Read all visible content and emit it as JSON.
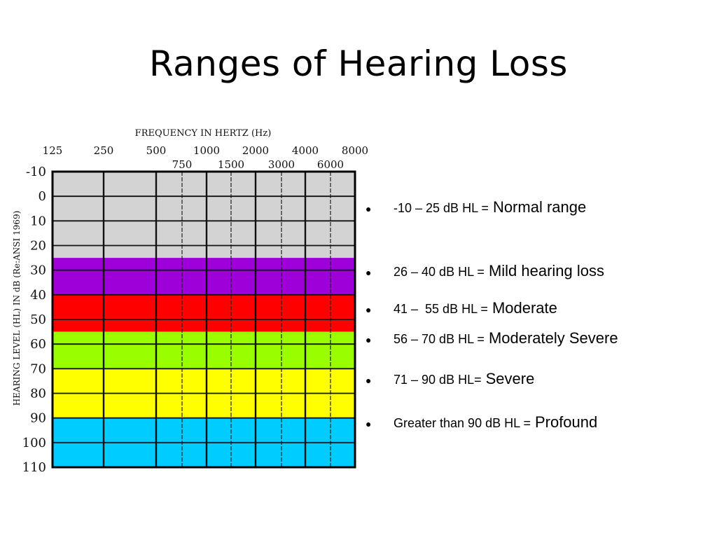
{
  "slide": {
    "title": "Ranges of Hearing Loss"
  },
  "audiogram": {
    "frequency_axis_title": "FREQUENCY IN HERTZ (Hz)",
    "level_axis_title": "HEARING LEVEL (HL) IN dB (Re:ANSI 1969)",
    "top_frequencies": [
      "125",
      "250",
      "500",
      "1000",
      "2000",
      "4000",
      "8000"
    ],
    "mid_frequencies": [
      "750",
      "1500",
      "3000",
      "6000"
    ],
    "levels": [
      "-10",
      "0",
      "10",
      "20",
      "30",
      "40",
      "50",
      "60",
      "70",
      "80",
      "90",
      "100",
      "110"
    ],
    "bands": [
      {
        "from": -10,
        "to": 25,
        "color": "#d3d3d3"
      },
      {
        "from": 25,
        "to": 40,
        "color": "#9d00d9"
      },
      {
        "from": 40,
        "to": 55,
        "color": "#ff0000"
      },
      {
        "from": 55,
        "to": 70,
        "color": "#99ff00"
      },
      {
        "from": 70,
        "to": 90,
        "color": "#ffff00"
      },
      {
        "from": 90,
        "to": 110,
        "color": "#00ccff"
      }
    ]
  },
  "legend": [
    {
      "bullet": "●",
      "range": "-10 – 25 dB HL =",
      "label": "Normal range"
    },
    {
      "bullet": "●",
      "range": "26 – 40 dB HL =",
      "label": "Mild hearing loss"
    },
    {
      "bullet": "●",
      "range": "41 –  55 dB HL =",
      "label": "Moderate"
    },
    {
      "bullet": "●",
      "range": "56 – 70 dB HL =",
      "label": "Moderately Severe"
    },
    {
      "bullet": "●",
      "range": "71 – 90 dB HL=",
      "label": "Severe"
    },
    {
      "bullet": "●",
      "range": "Greater than 90 dB HL =",
      "label": "Profound"
    }
  ]
}
